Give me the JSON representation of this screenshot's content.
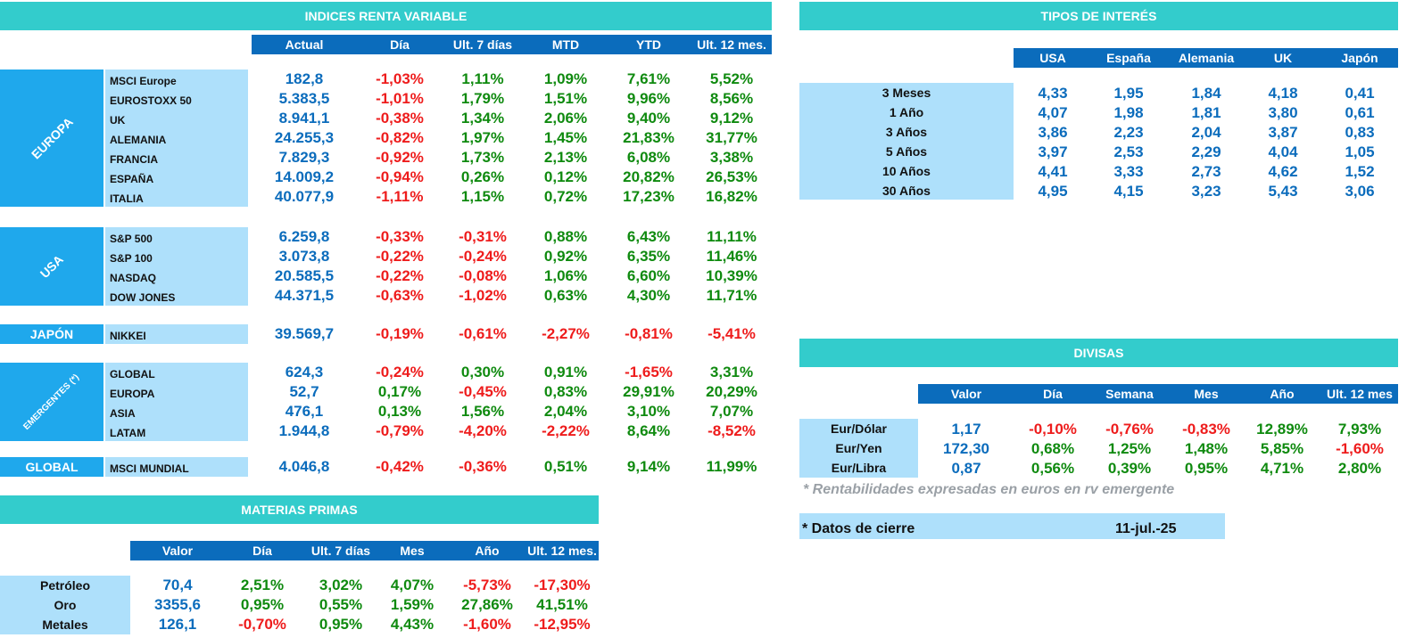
{
  "renta_variable": {
    "title": "INDICES RENTA VARIABLE",
    "columns": [
      "Actual",
      "Día",
      "Ult. 7 días",
      "MTD",
      "YTD",
      "Ult. 12 mes."
    ],
    "groups": [
      {
        "region": "EUROPA",
        "rows": [
          {
            "name": "MSCI Europe",
            "values": [
              "182,8",
              "-1,03%",
              "1,11%",
              "1,09%",
              "7,61%",
              "5,52%"
            ]
          },
          {
            "name": "EUROSTOXX 50",
            "values": [
              "5.383,5",
              "-1,01%",
              "1,79%",
              "1,51%",
              "9,96%",
              "8,56%"
            ]
          },
          {
            "name": "UK",
            "values": [
              "8.941,1",
              "-0,38%",
              "1,34%",
              "2,06%",
              "9,40%",
              "9,12%"
            ]
          },
          {
            "name": "ALEMANIA",
            "values": [
              "24.255,3",
              "-0,82%",
              "1,97%",
              "1,45%",
              "21,83%",
              "31,77%"
            ]
          },
          {
            "name": "FRANCIA",
            "values": [
              "7.829,3",
              "-0,92%",
              "1,73%",
              "2,13%",
              "6,08%",
              "3,38%"
            ]
          },
          {
            "name": "ESPAÑA",
            "values": [
              "14.009,2",
              "-0,94%",
              "0,26%",
              "0,12%",
              "20,82%",
              "26,53%"
            ]
          },
          {
            "name": "ITALIA",
            "values": [
              "40.077,9",
              "-1,11%",
              "1,15%",
              "0,72%",
              "17,23%",
              "16,82%"
            ]
          }
        ]
      },
      {
        "region": "USA",
        "rows": [
          {
            "name": "S&P 500",
            "values": [
              "6.259,8",
              "-0,33%",
              "-0,31%",
              "0,88%",
              "6,43%",
              "11,11%"
            ]
          },
          {
            "name": "S&P 100",
            "values": [
              "3.073,8",
              "-0,22%",
              "-0,24%",
              "0,92%",
              "6,35%",
              "11,46%"
            ]
          },
          {
            "name": "NASDAQ",
            "values": [
              "20.585,5",
              "-0,22%",
              "-0,08%",
              "1,06%",
              "6,60%",
              "10,39%"
            ]
          },
          {
            "name": "DOW JONES",
            "values": [
              "44.371,5",
              "-0,63%",
              "-1,02%",
              "0,63%",
              "4,30%",
              "11,71%"
            ]
          }
        ]
      },
      {
        "region": "JAPÓN",
        "rows": [
          {
            "name": "NIKKEI",
            "values": [
              "39.569,7",
              "-0,19%",
              "-0,61%",
              "-2,27%",
              "-0,81%",
              "-5,41%"
            ]
          }
        ]
      },
      {
        "region": "EMERGENTES (*)",
        "rows": [
          {
            "name": "GLOBAL",
            "values": [
              "624,3",
              "-0,24%",
              "0,30%",
              "0,91%",
              "-1,65%",
              "3,31%"
            ]
          },
          {
            "name": "EUROPA",
            "values": [
              "52,7",
              "0,17%",
              "-0,45%",
              "0,83%",
              "29,91%",
              "20,29%"
            ]
          },
          {
            "name": "ASIA",
            "values": [
              "476,1",
              "0,13%",
              "1,56%",
              "2,04%",
              "3,10%",
              "7,07%"
            ]
          },
          {
            "name": "LATAM",
            "values": [
              "1.944,8",
              "-0,79%",
              "-4,20%",
              "-2,22%",
              "8,64%",
              "-8,52%"
            ]
          }
        ]
      },
      {
        "region": "GLOBAL",
        "rows": [
          {
            "name": "MSCI MUNDIAL",
            "values": [
              "4.046,8",
              "-0,42%",
              "-0,36%",
              "0,51%",
              "9,14%",
              "11,99%"
            ]
          }
        ]
      }
    ]
  },
  "materias_primas": {
    "title": "MATERIAS PRIMAS",
    "columns": [
      "Valor",
      "Día",
      "Ult. 7 días",
      "Mes",
      "Año",
      "Ult. 12 mes."
    ],
    "rows": [
      {
        "name": "Petróleo",
        "values": [
          "70,4",
          "2,51%",
          "3,02%",
          "4,07%",
          "-5,73%",
          "-17,30%"
        ]
      },
      {
        "name": "Oro",
        "values": [
          "3355,6",
          "0,95%",
          "0,55%",
          "1,59%",
          "27,86%",
          "41,51%"
        ]
      },
      {
        "name": "Metales",
        "values": [
          "126,1",
          "-0,70%",
          "0,95%",
          "4,43%",
          "-1,60%",
          "-12,95%"
        ]
      }
    ]
  },
  "tipos_interes": {
    "title": "TIPOS DE INTERÉS",
    "columns": [
      "USA",
      "España",
      "Alemania",
      "UK",
      "Japón"
    ],
    "rows": [
      {
        "name": "3 Meses",
        "values": [
          "4,33",
          "1,95",
          "1,84",
          "4,18",
          "0,41"
        ]
      },
      {
        "name": "1 Año",
        "values": [
          "4,07",
          "1,98",
          "1,81",
          "3,80",
          "0,61"
        ]
      },
      {
        "name": "3 Años",
        "values": [
          "3,86",
          "2,23",
          "2,04",
          "3,87",
          "0,83"
        ]
      },
      {
        "name": "5 Años",
        "values": [
          "3,97",
          "2,53",
          "2,29",
          "4,04",
          "1,05"
        ]
      },
      {
        "name": "10 Años",
        "values": [
          "4,41",
          "3,33",
          "2,73",
          "4,62",
          "1,52"
        ]
      },
      {
        "name": "30 Años",
        "values": [
          "4,95",
          "4,15",
          "3,23",
          "5,43",
          "3,06"
        ]
      }
    ]
  },
  "divisas": {
    "title": "DIVISAS",
    "columns": [
      "Valor",
      "Día",
      "Semana",
      "Mes",
      "Año",
      "Ult. 12 mes"
    ],
    "rows": [
      {
        "name": "Eur/Dólar",
        "values": [
          "1,17",
          "-0,10%",
          "-0,76%",
          "-0,83%",
          "12,89%",
          "7,93%"
        ]
      },
      {
        "name": "Eur/Yen",
        "values": [
          "172,30",
          "0,68%",
          "1,25%",
          "1,48%",
          "5,85%",
          "-1,60%"
        ]
      },
      {
        "name": "Eur/Libra",
        "values": [
          "0,87",
          "0,56%",
          "0,39%",
          "0,95%",
          "4,71%",
          "2,80%"
        ]
      }
    ]
  },
  "footnote": "* Rentabilidades expresadas en euros en rv emergente",
  "cierre": {
    "label": "* Datos de cierre",
    "date": "11-jul.-25"
  },
  "colors": {
    "banner": "#33cccc",
    "header": "#0b6cbc",
    "region": "#1fa8ec",
    "light": "#aee0fb",
    "positive": "#0f8a0f",
    "negative": "#ee1c1c",
    "value": "#0b6cbc"
  }
}
